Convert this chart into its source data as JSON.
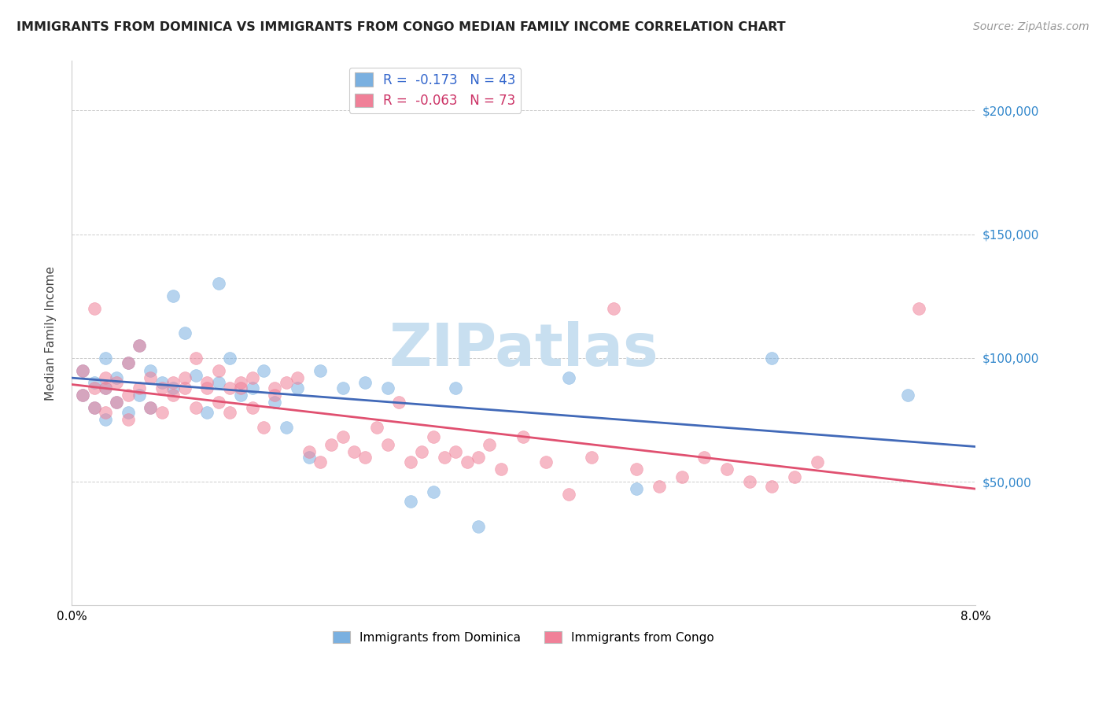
{
  "title": "IMMIGRANTS FROM DOMINICA VS IMMIGRANTS FROM CONGO MEDIAN FAMILY INCOME CORRELATION CHART",
  "source": "Source: ZipAtlas.com",
  "ylabel": "Median Family Income",
  "xlim": [
    0.0,
    0.08
  ],
  "ylim": [
    0,
    220000
  ],
  "dominica_color": "#7ab0e0",
  "congo_color": "#f08098",
  "dominica_line_color": "#4169b8",
  "congo_line_color": "#e05070",
  "watermark": "ZIPatlas",
  "watermark_color": "#c8dff0",
  "legend_r_entries": [
    {
      "label": "R =  -0.173   N = 43",
      "color": "#a8c8f0"
    },
    {
      "label": "R =  -0.063   N = 73",
      "color": "#f0a8b8"
    }
  ],
  "dominica_x": [
    0.001,
    0.001,
    0.002,
    0.002,
    0.003,
    0.003,
    0.003,
    0.004,
    0.004,
    0.005,
    0.005,
    0.006,
    0.006,
    0.007,
    0.007,
    0.008,
    0.009,
    0.009,
    0.01,
    0.011,
    0.012,
    0.013,
    0.013,
    0.014,
    0.015,
    0.016,
    0.017,
    0.018,
    0.019,
    0.02,
    0.021,
    0.022,
    0.024,
    0.026,
    0.028,
    0.03,
    0.032,
    0.034,
    0.036,
    0.044,
    0.05,
    0.062,
    0.074
  ],
  "dominica_y": [
    85000,
    95000,
    90000,
    80000,
    100000,
    88000,
    75000,
    92000,
    82000,
    98000,
    78000,
    105000,
    85000,
    95000,
    80000,
    90000,
    125000,
    88000,
    110000,
    93000,
    78000,
    90000,
    130000,
    100000,
    85000,
    88000,
    95000,
    82000,
    72000,
    88000,
    60000,
    95000,
    88000,
    90000,
    88000,
    42000,
    46000,
    88000,
    32000,
    92000,
    47000,
    100000,
    85000
  ],
  "congo_x": [
    0.001,
    0.001,
    0.002,
    0.002,
    0.002,
    0.003,
    0.003,
    0.003,
    0.004,
    0.004,
    0.005,
    0.005,
    0.005,
    0.006,
    0.006,
    0.007,
    0.007,
    0.008,
    0.008,
    0.009,
    0.009,
    0.01,
    0.01,
    0.011,
    0.011,
    0.012,
    0.012,
    0.013,
    0.013,
    0.014,
    0.014,
    0.015,
    0.015,
    0.016,
    0.016,
    0.017,
    0.018,
    0.018,
    0.019,
    0.02,
    0.021,
    0.022,
    0.023,
    0.024,
    0.025,
    0.026,
    0.027,
    0.028,
    0.029,
    0.03,
    0.031,
    0.032,
    0.033,
    0.034,
    0.035,
    0.036,
    0.037,
    0.038,
    0.04,
    0.042,
    0.044,
    0.046,
    0.048,
    0.05,
    0.052,
    0.054,
    0.056,
    0.058,
    0.06,
    0.062,
    0.064,
    0.066,
    0.075
  ],
  "congo_y": [
    85000,
    95000,
    88000,
    80000,
    120000,
    92000,
    78000,
    88000,
    90000,
    82000,
    98000,
    85000,
    75000,
    105000,
    88000,
    92000,
    80000,
    88000,
    78000,
    90000,
    85000,
    92000,
    88000,
    100000,
    80000,
    90000,
    88000,
    82000,
    95000,
    88000,
    78000,
    90000,
    88000,
    92000,
    80000,
    72000,
    85000,
    88000,
    90000,
    92000,
    62000,
    58000,
    65000,
    68000,
    62000,
    60000,
    72000,
    65000,
    82000,
    58000,
    62000,
    68000,
    60000,
    62000,
    58000,
    60000,
    65000,
    55000,
    68000,
    58000,
    45000,
    60000,
    120000,
    55000,
    48000,
    52000,
    60000,
    55000,
    50000,
    48000,
    52000,
    58000,
    120000
  ]
}
